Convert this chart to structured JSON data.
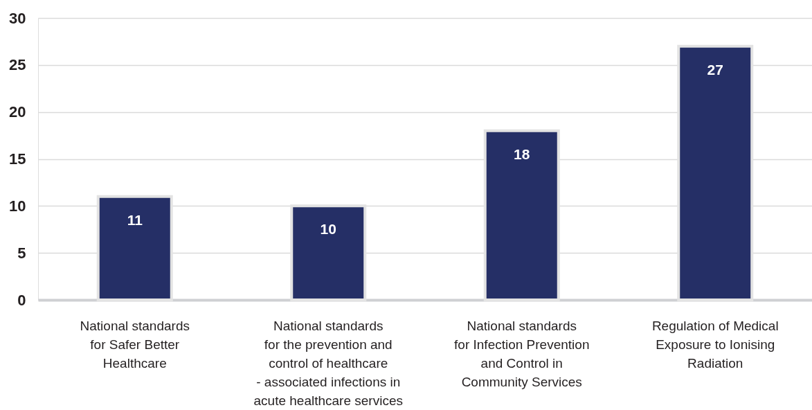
{
  "chart_data": {
    "type": "bar",
    "categories": [
      "National standards\nfor Safer Better\nHealthcare",
      "National standards\nfor the prevention and\ncontrol of healthcare\n- associated infections in\nacute healthcare services",
      "National standards\nfor Infection Prevention\nand Control in\nCommunity Services",
      "Regulation of Medical\nExposure to Ionising\nRadiation"
    ],
    "values": [
      11,
      10,
      18,
      27
    ],
    "color": "#252f66",
    "ylim": [
      0,
      30
    ],
    "yticks": [
      0,
      5,
      10,
      15,
      20,
      25,
      30
    ],
    "grid": "y",
    "data_labels": true
  }
}
